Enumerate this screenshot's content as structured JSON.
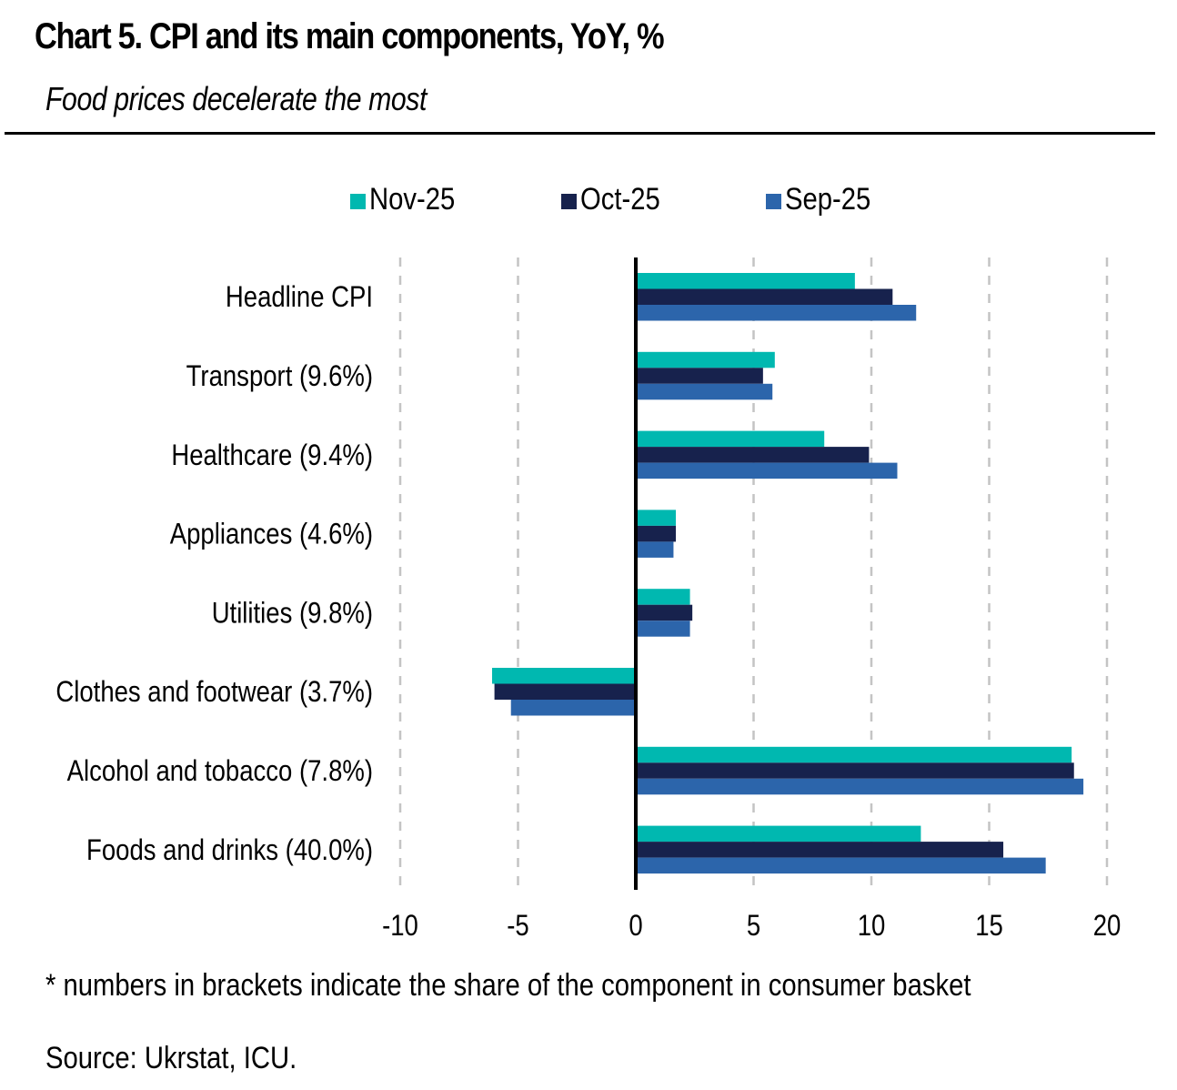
{
  "header": {
    "title": "Chart 5. CPI and its main components, YoY, %",
    "subtitle": "Food prices decelerate the most"
  },
  "footer": {
    "note": "* numbers in brackets indicate the share of the component in consumer basket",
    "source": "Source: Ukrstat, ICU."
  },
  "chart_data": {
    "type": "bar",
    "orientation": "horizontal",
    "title": "Chart 5. CPI and its main components, YoY, %",
    "subtitle": "Food prices decelerate the most",
    "xlabel": "",
    "ylabel": "",
    "xlim": [
      -10,
      20
    ],
    "xticks": [
      -10,
      -5,
      0,
      5,
      10,
      15,
      20
    ],
    "xtick_labels": [
      "-10",
      "-5",
      "0",
      "5",
      "10",
      "15",
      "20"
    ],
    "grid": "vertical dashed",
    "legend_position": "top-center",
    "categories": [
      "Headline CPI",
      "Transport (9.6%)",
      "Healthcare (9.4%)",
      "Appliances (4.6%)",
      "Utilities (9.8%)",
      "Clothes and footwear (3.7%)",
      "Alcohol and tobacco (7.8%)",
      "Foods and drinks (40.0%)"
    ],
    "series": [
      {
        "name": "Nov-25",
        "color": "#00B8B0",
        "values": [
          9.3,
          5.9,
          8.0,
          1.7,
          2.3,
          -6.1,
          18.5,
          12.1
        ]
      },
      {
        "name": "Oct-25",
        "color": "#17224D",
        "values": [
          10.9,
          5.4,
          9.9,
          1.7,
          2.4,
          -6.0,
          18.6,
          15.6
        ]
      },
      {
        "name": "Sep-25",
        "color": "#2C65AB",
        "values": [
          11.9,
          5.8,
          11.1,
          1.6,
          2.3,
          -5.3,
          19.0,
          17.4
        ]
      }
    ]
  }
}
